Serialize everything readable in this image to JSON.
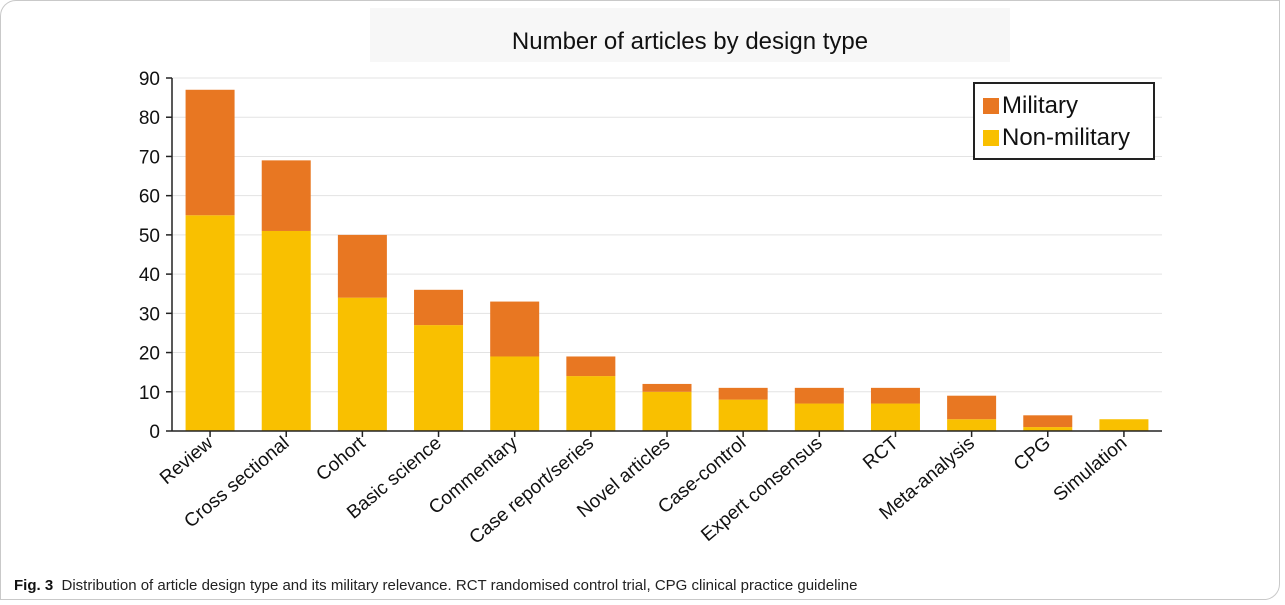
{
  "figure": {
    "caption_label": "Fig. 3",
    "caption_text": "Distribution of article design type and its military relevance. RCT randomised control trial, CPG clinical practice guideline"
  },
  "chart_data": {
    "type": "bar",
    "stacked": true,
    "title": "Number of articles by design type",
    "xlabel": "",
    "ylabel": "",
    "ylim": [
      0,
      90
    ],
    "yticks": [
      0,
      10,
      20,
      30,
      40,
      50,
      60,
      70,
      80,
      90
    ],
    "grid": "horizontal",
    "legend_position": "top-right",
    "categories": [
      "Review",
      "Cross sectional",
      "Cohort",
      "Basic science",
      "Commentary",
      "Case report/series",
      "Novel articles",
      "Case-control",
      "Expert consensus",
      "RCT",
      "Meta-analysis",
      "CPG",
      "Simulation"
    ],
    "series": [
      {
        "name": "Non-military",
        "color": "#f9c000",
        "values": [
          55,
          51,
          34,
          27,
          19,
          14,
          10,
          8,
          7,
          7,
          3,
          1,
          3
        ]
      },
      {
        "name": "Military",
        "color": "#e87722",
        "values": [
          32,
          18,
          16,
          9,
          14,
          5,
          2,
          3,
          4,
          4,
          6,
          3,
          0
        ]
      }
    ],
    "legend_order": [
      "Military",
      "Non-military"
    ]
  }
}
